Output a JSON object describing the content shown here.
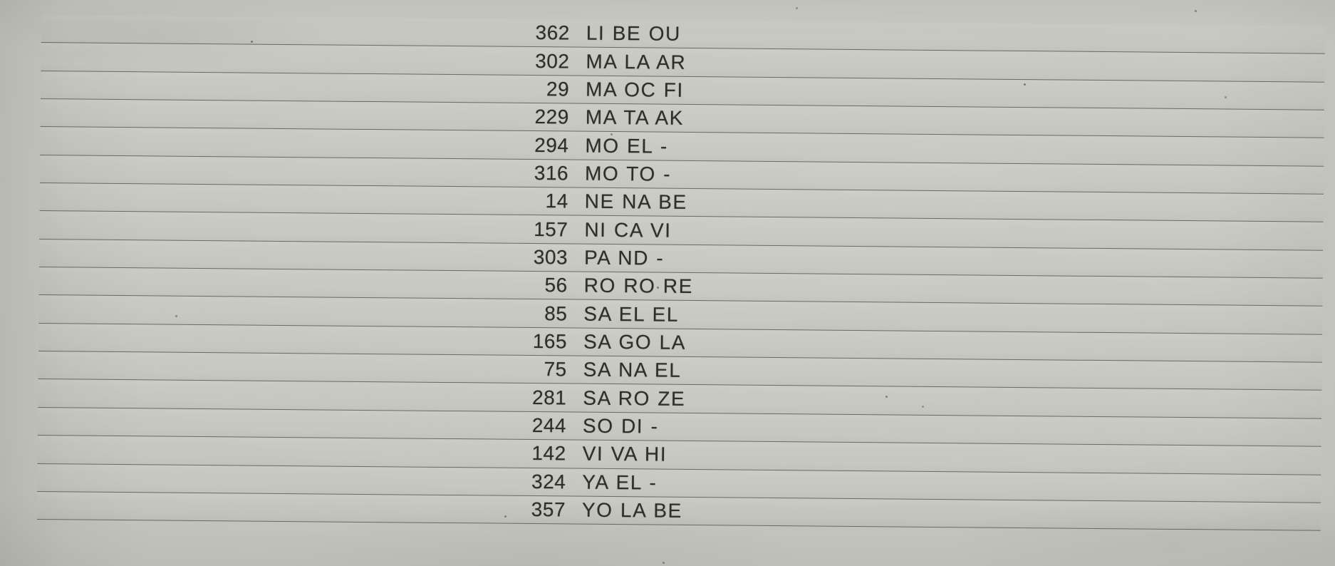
{
  "document": {
    "kind": "scanned ruled roster list",
    "colors": {
      "paper": "#c7c9c1",
      "rule_line": "#4e5146",
      "ink": "#2e2e2b"
    },
    "rows": [
      {
        "number": "362",
        "code": "LI BE OU"
      },
      {
        "number": "302",
        "code": "MA LA AR"
      },
      {
        "number": "29",
        "code": "MA OC FI"
      },
      {
        "number": "229",
        "code": "MA TA AK"
      },
      {
        "number": "294",
        "code": "MO EL -"
      },
      {
        "number": "316",
        "code": "MO TO -"
      },
      {
        "number": "14",
        "code": "NE NA BE"
      },
      {
        "number": "157",
        "code": "NI CA VI"
      },
      {
        "number": "303",
        "code": "PA ND -"
      },
      {
        "number": "56",
        "code": "RO RO RE"
      },
      {
        "number": "85",
        "code": "SA EL EL"
      },
      {
        "number": "165",
        "code": "SA GO LA"
      },
      {
        "number": "75",
        "code": "SA NA EL"
      },
      {
        "number": "281",
        "code": "SA RO ZE"
      },
      {
        "number": "244",
        "code": "SO DI -"
      },
      {
        "number": "142",
        "code": "VI VA HI"
      },
      {
        "number": "324",
        "code": "YA EL -"
      },
      {
        "number": "357",
        "code": "YO LA BE"
      }
    ]
  }
}
